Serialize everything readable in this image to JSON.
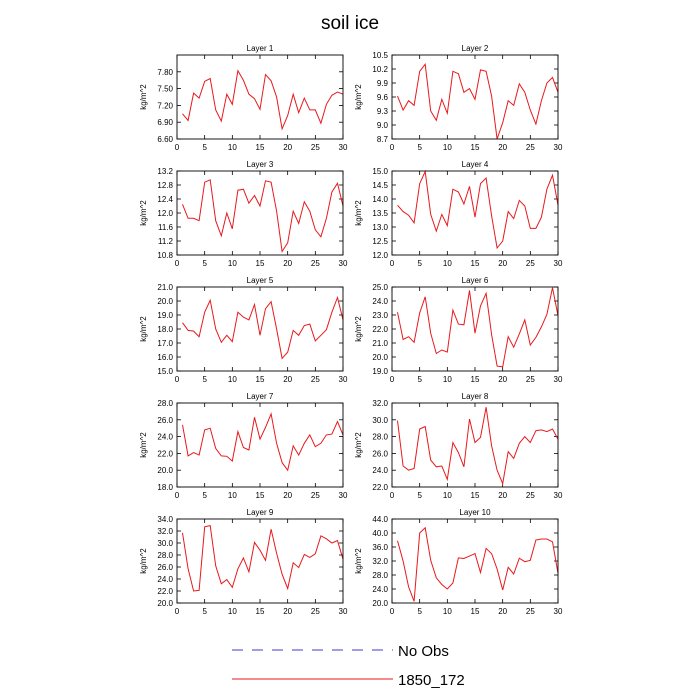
{
  "title": "soil ice",
  "legend": {
    "entries": [
      {
        "label": "No Obs",
        "color": "#3b3bd6",
        "dash": true
      },
      {
        "label": "1850_172",
        "color": "#e8191c",
        "dash": false
      }
    ]
  },
  "chart_data": [
    {
      "type": "line",
      "title": "Layer 1",
      "ylabel": "kg/m^2",
      "xlim": [
        0,
        30
      ],
      "xticks": [
        0,
        5,
        10,
        15,
        20,
        25,
        30
      ],
      "ylim": [
        6.6,
        8.1
      ],
      "yticks": [
        6.6,
        6.9,
        7.2,
        7.5,
        7.8
      ],
      "ytick_labels": [
        "6.60",
        "6.90",
        "7.20",
        "7.50",
        "7.80"
      ],
      "series": [
        {
          "name": "1850_172",
          "color": "#e8191c",
          "x": [
            1,
            2,
            3,
            4,
            5,
            6,
            7,
            8,
            9,
            10,
            11,
            12,
            13,
            14,
            15,
            16,
            17,
            18,
            19,
            20,
            21,
            22,
            23,
            24,
            25,
            26,
            27,
            28,
            29,
            30
          ],
          "y": [
            7.05,
            6.93,
            7.42,
            7.33,
            7.63,
            7.68,
            7.12,
            6.92,
            7.4,
            7.22,
            7.82,
            7.65,
            7.4,
            7.32,
            7.13,
            7.75,
            7.64,
            7.35,
            6.78,
            7.02,
            7.4,
            7.07,
            7.33,
            7.12,
            7.12,
            6.88,
            7.22,
            7.38,
            7.44,
            7.4
          ]
        }
      ]
    },
    {
      "type": "line",
      "title": "Layer 2",
      "ylabel": "kg/m^2",
      "xlim": [
        0,
        30
      ],
      "xticks": [
        0,
        5,
        10,
        15,
        20,
        25,
        30
      ],
      "ylim": [
        8.7,
        10.5
      ],
      "yticks": [
        8.7,
        9.0,
        9.3,
        9.6,
        9.9,
        10.2,
        10.5
      ],
      "ytick_labels": [
        "8.7",
        "9.0",
        "9.3",
        "9.6",
        "9.9",
        "10.2",
        "10.5"
      ],
      "series": [
        {
          "name": "1850_172",
          "color": "#e8191c",
          "x": [
            1,
            2,
            3,
            4,
            5,
            6,
            7,
            8,
            9,
            10,
            11,
            12,
            13,
            14,
            15,
            16,
            17,
            18,
            19,
            20,
            21,
            22,
            23,
            24,
            25,
            26,
            27,
            28,
            29,
            30
          ],
          "y": [
            9.62,
            9.32,
            9.52,
            9.42,
            10.15,
            10.3,
            9.3,
            9.1,
            9.55,
            9.25,
            10.15,
            10.1,
            9.7,
            9.78,
            9.55,
            10.18,
            10.15,
            9.62,
            8.7,
            9.05,
            9.52,
            9.42,
            9.88,
            9.7,
            9.32,
            9.02,
            9.52,
            9.9,
            10.02,
            9.7
          ]
        }
      ]
    },
    {
      "type": "line",
      "title": "Layer 3",
      "ylabel": "kg/m^2",
      "xlim": [
        0,
        30
      ],
      "xticks": [
        0,
        5,
        10,
        15,
        20,
        25,
        30
      ],
      "ylim": [
        10.8,
        13.2
      ],
      "yticks": [
        10.8,
        11.2,
        11.6,
        12.0,
        12.4,
        12.8,
        13.2
      ],
      "ytick_labels": [
        "10.8",
        "11.2",
        "11.6",
        "12.0",
        "12.4",
        "12.8",
        "13.2"
      ],
      "series": [
        {
          "name": "1850_172",
          "color": "#e8191c",
          "x": [
            1,
            2,
            3,
            4,
            5,
            6,
            7,
            8,
            9,
            10,
            11,
            12,
            13,
            14,
            15,
            16,
            17,
            18,
            19,
            20,
            21,
            22,
            23,
            24,
            25,
            26,
            27,
            28,
            29,
            30
          ],
          "y": [
            12.25,
            11.85,
            11.85,
            11.78,
            12.88,
            12.95,
            11.78,
            11.35,
            12.0,
            11.55,
            12.65,
            12.68,
            12.28,
            12.5,
            12.2,
            12.92,
            12.88,
            12.05,
            10.9,
            11.15,
            12.05,
            11.7,
            12.32,
            12.05,
            11.52,
            11.32,
            11.85,
            12.6,
            12.85,
            12.2
          ]
        }
      ]
    },
    {
      "type": "line",
      "title": "Layer 4",
      "ylabel": "kg/m^2",
      "xlim": [
        0,
        30
      ],
      "xticks": [
        0,
        5,
        10,
        15,
        20,
        25,
        30
      ],
      "ylim": [
        12.0,
        15.0
      ],
      "yticks": [
        12.0,
        12.5,
        13.0,
        13.5,
        14.0,
        14.5,
        15.0
      ],
      "ytick_labels": [
        "12.0",
        "12.5",
        "13.0",
        "13.5",
        "14.0",
        "14.5",
        "15.0"
      ],
      "series": [
        {
          "name": "1850_172",
          "color": "#e8191c",
          "x": [
            1,
            2,
            3,
            4,
            5,
            6,
            7,
            8,
            9,
            10,
            11,
            12,
            13,
            14,
            15,
            16,
            17,
            18,
            19,
            20,
            21,
            22,
            23,
            24,
            25,
            26,
            27,
            28,
            29,
            30
          ],
          "y": [
            13.78,
            13.55,
            13.42,
            13.15,
            14.55,
            14.98,
            13.45,
            12.85,
            13.45,
            13.05,
            14.35,
            14.25,
            13.82,
            14.45,
            13.35,
            14.55,
            14.75,
            13.4,
            12.25,
            12.5,
            13.55,
            13.3,
            13.95,
            13.75,
            12.95,
            12.95,
            13.35,
            14.35,
            14.85,
            13.78
          ]
        }
      ]
    },
    {
      "type": "line",
      "title": "Layer 5",
      "ylabel": "kg/m^2",
      "xlim": [
        0,
        30
      ],
      "xticks": [
        0,
        5,
        10,
        15,
        20,
        25,
        30
      ],
      "ylim": [
        15.0,
        21.0
      ],
      "yticks": [
        15.0,
        16.0,
        17.0,
        18.0,
        19.0,
        20.0,
        21.0
      ],
      "ytick_labels": [
        "15.0",
        "16.0",
        "17.0",
        "18.0",
        "19.0",
        "20.0",
        "21.0"
      ],
      "series": [
        {
          "name": "1850_172",
          "color": "#e8191c",
          "x": [
            1,
            2,
            3,
            4,
            5,
            6,
            7,
            8,
            9,
            10,
            11,
            12,
            13,
            14,
            15,
            16,
            17,
            18,
            19,
            20,
            21,
            22,
            23,
            24,
            25,
            26,
            27,
            28,
            29,
            30
          ],
          "y": [
            18.45,
            17.9,
            17.85,
            17.45,
            19.2,
            20.05,
            18.0,
            17.05,
            17.55,
            17.1,
            19.2,
            18.85,
            18.65,
            19.75,
            17.55,
            19.45,
            19.95,
            18.0,
            15.9,
            16.35,
            17.9,
            17.55,
            18.25,
            18.35,
            17.15,
            17.55,
            17.95,
            19.2,
            20.25,
            18.65
          ]
        }
      ]
    },
    {
      "type": "line",
      "title": "Layer 6",
      "ylabel": "kg/m^2",
      "xlim": [
        0,
        30
      ],
      "xticks": [
        0,
        5,
        10,
        15,
        20,
        25,
        30
      ],
      "ylim": [
        19.0,
        25.0
      ],
      "yticks": [
        19.0,
        20.0,
        21.0,
        22.0,
        23.0,
        24.0,
        25.0
      ],
      "ytick_labels": [
        "19.0",
        "20.0",
        "21.0",
        "22.0",
        "23.0",
        "24.0",
        "25.0"
      ],
      "series": [
        {
          "name": "1850_172",
          "color": "#e8191c",
          "x": [
            1,
            2,
            3,
            4,
            5,
            6,
            7,
            8,
            9,
            10,
            11,
            12,
            13,
            14,
            15,
            16,
            17,
            18,
            19,
            20,
            21,
            22,
            23,
            24,
            25,
            26,
            27,
            28,
            29,
            30
          ],
          "y": [
            23.2,
            21.25,
            21.45,
            21.05,
            23.15,
            24.3,
            21.7,
            20.25,
            20.5,
            20.35,
            23.35,
            22.35,
            22.3,
            24.75,
            21.7,
            23.65,
            24.55,
            21.6,
            19.35,
            19.3,
            21.45,
            20.7,
            21.65,
            22.65,
            20.85,
            21.4,
            22.15,
            23.05,
            24.95,
            22.95
          ]
        }
      ]
    },
    {
      "type": "line",
      "title": "Layer 7",
      "ylabel": "kg/m^2",
      "xlim": [
        0,
        30
      ],
      "xticks": [
        0,
        5,
        10,
        15,
        20,
        25,
        30
      ],
      "ylim": [
        18.0,
        28.0
      ],
      "yticks": [
        18.0,
        20.0,
        22.0,
        24.0,
        26.0,
        28.0
      ],
      "ytick_labels": [
        "18.0",
        "20.0",
        "22.0",
        "24.0",
        "26.0",
        "28.0"
      ],
      "series": [
        {
          "name": "1850_172",
          "color": "#e8191c",
          "x": [
            1,
            2,
            3,
            4,
            5,
            6,
            7,
            8,
            9,
            10,
            11,
            12,
            13,
            14,
            15,
            16,
            17,
            18,
            19,
            20,
            21,
            22,
            23,
            24,
            25,
            26,
            27,
            28,
            29,
            30
          ],
          "y": [
            25.4,
            21.7,
            22.1,
            21.8,
            24.8,
            25.0,
            22.6,
            21.7,
            21.65,
            21.1,
            24.6,
            22.7,
            22.4,
            26.3,
            23.7,
            25.1,
            26.7,
            23.2,
            20.9,
            20.0,
            22.9,
            21.8,
            23.2,
            24.2,
            22.8,
            23.2,
            24.2,
            24.3,
            25.8,
            24.2
          ]
        }
      ]
    },
    {
      "type": "line",
      "title": "Layer 8",
      "ylabel": "kg/m^2",
      "xlim": [
        0,
        30
      ],
      "xticks": [
        0,
        5,
        10,
        15,
        20,
        25,
        30
      ],
      "ylim": [
        22.0,
        32.0
      ],
      "yticks": [
        22.0,
        24.0,
        26.0,
        28.0,
        30.0,
        32.0
      ],
      "ytick_labels": [
        "22.0",
        "24.0",
        "26.0",
        "28.0",
        "30.0",
        "32.0"
      ],
      "series": [
        {
          "name": "1850_172",
          "color": "#e8191c",
          "x": [
            1,
            2,
            3,
            4,
            5,
            6,
            7,
            8,
            9,
            10,
            11,
            12,
            13,
            14,
            15,
            16,
            17,
            18,
            19,
            20,
            21,
            22,
            23,
            24,
            25,
            26,
            27,
            28,
            29,
            30
          ],
          "y": [
            29.9,
            24.5,
            24.0,
            24.2,
            28.9,
            29.2,
            25.2,
            24.4,
            24.5,
            22.9,
            27.3,
            26.1,
            24.4,
            30.1,
            27.3,
            27.9,
            31.5,
            26.9,
            24.0,
            22.4,
            26.2,
            25.4,
            27.2,
            28.0,
            27.3,
            28.7,
            28.8,
            28.6,
            28.9,
            27.7
          ]
        }
      ]
    },
    {
      "type": "line",
      "title": "Layer 9",
      "ylabel": "kg/m^2",
      "xlim": [
        0,
        30
      ],
      "xticks": [
        0,
        5,
        10,
        15,
        20,
        25,
        30
      ],
      "ylim": [
        20.0,
        34.0
      ],
      "yticks": [
        20.0,
        22.0,
        24.0,
        26.0,
        28.0,
        30.0,
        32.0,
        34.0
      ],
      "ytick_labels": [
        "20.0",
        "22.0",
        "24.0",
        "26.0",
        "28.0",
        "30.0",
        "32.0",
        "34.0"
      ],
      "series": [
        {
          "name": "1850_172",
          "color": "#e8191c",
          "x": [
            1,
            2,
            3,
            4,
            5,
            6,
            7,
            8,
            9,
            10,
            11,
            12,
            13,
            14,
            15,
            16,
            17,
            18,
            19,
            20,
            21,
            22,
            23,
            24,
            25,
            26,
            27,
            28,
            29,
            30
          ],
          "y": [
            31.7,
            25.7,
            22.0,
            22.1,
            32.7,
            32.9,
            26.2,
            23.2,
            23.9,
            22.6,
            25.7,
            27.5,
            25.2,
            30.1,
            28.8,
            27.1,
            32.3,
            28.3,
            24.8,
            22.4,
            26.7,
            25.9,
            28.1,
            27.6,
            28.2,
            31.2,
            30.7,
            30.0,
            30.4,
            27.3
          ]
        }
      ]
    },
    {
      "type": "line",
      "title": "Layer 10",
      "ylabel": "kg/m^2",
      "xlim": [
        0,
        30
      ],
      "xticks": [
        0,
        5,
        10,
        15,
        20,
        25,
        30
      ],
      "ylim": [
        20.0,
        44.0
      ],
      "yticks": [
        20.0,
        24.0,
        28.0,
        32.0,
        36.0,
        40.0,
        44.0
      ],
      "ytick_labels": [
        "20.0",
        "24.0",
        "28.0",
        "32.0",
        "36.0",
        "40.0",
        "44.0"
      ],
      "series": [
        {
          "name": "1850_172",
          "color": "#e8191c",
          "x": [
            1,
            2,
            3,
            4,
            5,
            6,
            7,
            8,
            9,
            10,
            11,
            12,
            13,
            14,
            15,
            16,
            17,
            18,
            19,
            20,
            21,
            22,
            23,
            24,
            25,
            26,
            27,
            28,
            29,
            30
          ],
          "y": [
            37.8,
            32.0,
            24.6,
            20.5,
            40.0,
            41.5,
            32.2,
            27.2,
            25.3,
            24.0,
            25.7,
            32.9,
            32.7,
            33.4,
            34.1,
            28.7,
            35.6,
            34.1,
            29.7,
            23.7,
            30.2,
            28.3,
            32.8,
            31.8,
            32.2,
            38.0,
            38.3,
            38.3,
            37.5,
            28.5
          ]
        }
      ]
    }
  ]
}
